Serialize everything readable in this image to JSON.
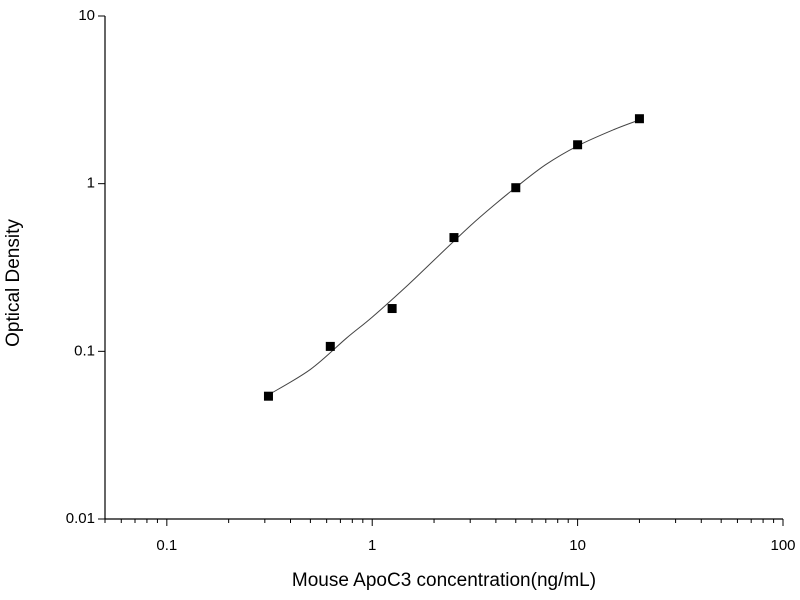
{
  "chart_data": {
    "type": "scatter",
    "x_label": "Mouse ApoC3 concentration(ng/mL)",
    "y_label": "Optical Density",
    "x": [
      0.3125,
      0.625,
      1.25,
      2.5,
      5,
      10,
      20
    ],
    "series": [
      {
        "color": "#000000",
        "values": [
          0.054,
          0.107,
          0.18,
          0.477,
          0.946,
          1.706,
          2.44
        ]
      }
    ],
    "fit": {
      "color": "#444444",
      "x": [
        0.3125,
        0.5,
        0.75,
        1,
        1.5,
        2,
        3,
        4,
        5,
        7,
        10,
        15,
        20
      ],
      "values": [
        0.055,
        0.078,
        0.12,
        0.16,
        0.25,
        0.35,
        0.56,
        0.76,
        0.95,
        1.3,
        1.68,
        2.1,
        2.4
      ]
    },
    "log_x": true,
    "log_y": true,
    "xlim": [
      0.05,
      100
    ],
    "ylim": [
      0.01,
      10
    ],
    "xticks": [
      0.1,
      1,
      10,
      100
    ],
    "xminorticks": [
      0.05,
      0.06,
      0.07,
      0.08,
      0.09,
      0.2,
      0.3,
      0.4,
      0.5,
      0.6,
      0.7,
      0.8,
      0.9,
      2,
      3,
      4,
      5,
      6,
      7,
      8,
      9,
      20,
      30,
      40,
      50,
      60,
      70,
      80,
      90
    ],
    "yticks": [
      0.01,
      0.1,
      1,
      10
    ],
    "grid": false
  }
}
